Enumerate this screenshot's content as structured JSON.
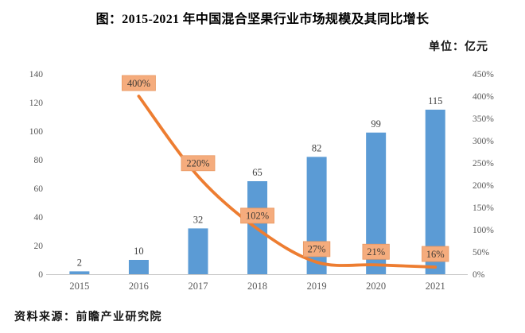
{
  "figure": {
    "title": "图：2015-2021 年中国混合坚果行业市场规模及其同比增长",
    "unit_label": "单位：亿元",
    "source_note": "资料来源：前瞻产业研究院"
  },
  "colors": {
    "bar_fill": "#5B9BD5",
    "line_stroke": "#ED7D31",
    "label_box_fill": "#F5AC7D",
    "label_box_border": "#E9975F",
    "label_box_text": "#3F3A35",
    "bar_value_text": "#404040",
    "axis_text": "#595959",
    "axis_line": "#C9C9C9"
  },
  "chart_data": {
    "type": "combo-bar-line",
    "categories": [
      "2015",
      "2016",
      "2017",
      "2018",
      "2019",
      "2020",
      "2021"
    ],
    "series": [
      {
        "id": "market-size-bars",
        "type": "bar",
        "axis": "left",
        "values": [
          2,
          10,
          32,
          65,
          82,
          99,
          115
        ],
        "value_labels": [
          "2",
          "10",
          "32",
          "65",
          "82",
          "99",
          "115"
        ]
      },
      {
        "id": "yoy-growth-line",
        "type": "line",
        "axis": "right",
        "values": [
          null,
          400,
          220,
          102,
          27,
          21,
          16
        ],
        "point_labels": [
          null,
          "400%",
          "220%",
          "102%",
          "27%",
          "21%",
          "16%"
        ]
      }
    ],
    "left_axis": {
      "min": 0,
      "max": 140,
      "step": 20,
      "tick_labels": [
        "0",
        "20",
        "40",
        "60",
        "80",
        "100",
        "120",
        "140"
      ]
    },
    "right_axis": {
      "min": 0,
      "max": 450,
      "step": 50,
      "tick_labels": [
        "0%",
        "50%",
        "100%",
        "150%",
        "200%",
        "250%",
        "300%",
        "350%",
        "400%",
        "450%"
      ]
    },
    "grid": false,
    "legend": "none"
  }
}
